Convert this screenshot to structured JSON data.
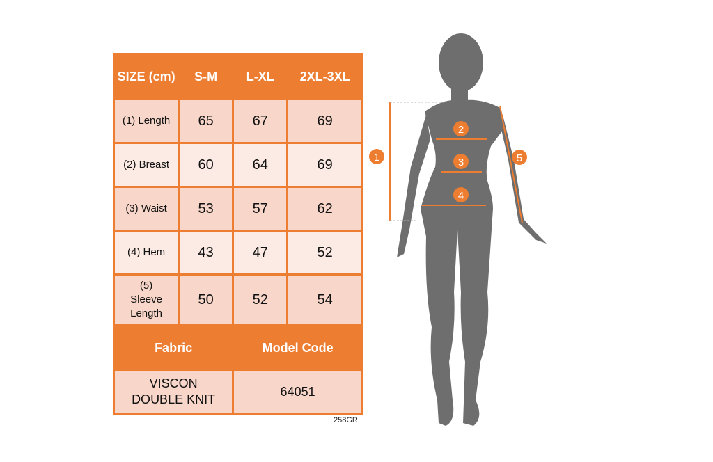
{
  "table": {
    "headers": [
      "SIZE (cm)",
      "S-M",
      "L-XL",
      "2XL-3XL"
    ],
    "rows": [
      {
        "label": "(1) Length",
        "values": [
          "65",
          "67",
          "69"
        ]
      },
      {
        "label": "(2) Breast",
        "values": [
          "60",
          "64",
          "69"
        ]
      },
      {
        "label": "(3) Waist",
        "values": [
          "53",
          "57",
          "62"
        ]
      },
      {
        "label": "(4) Hem",
        "values": [
          "43",
          "47",
          "52"
        ]
      },
      {
        "label": "(5) Sleeve Length",
        "values": [
          "50",
          "52",
          "54"
        ]
      }
    ],
    "fabric_header": "Fabric",
    "model_code_header": "Model Code",
    "fabric": "VISCON DOUBLE KNIT",
    "model_code": "64051"
  },
  "image_code": "258GR",
  "figure": {
    "markers": [
      "1",
      "2",
      "3",
      "4",
      "5"
    ],
    "accent": "#ed7d31",
    "silhouette": "#6e6e6e"
  }
}
